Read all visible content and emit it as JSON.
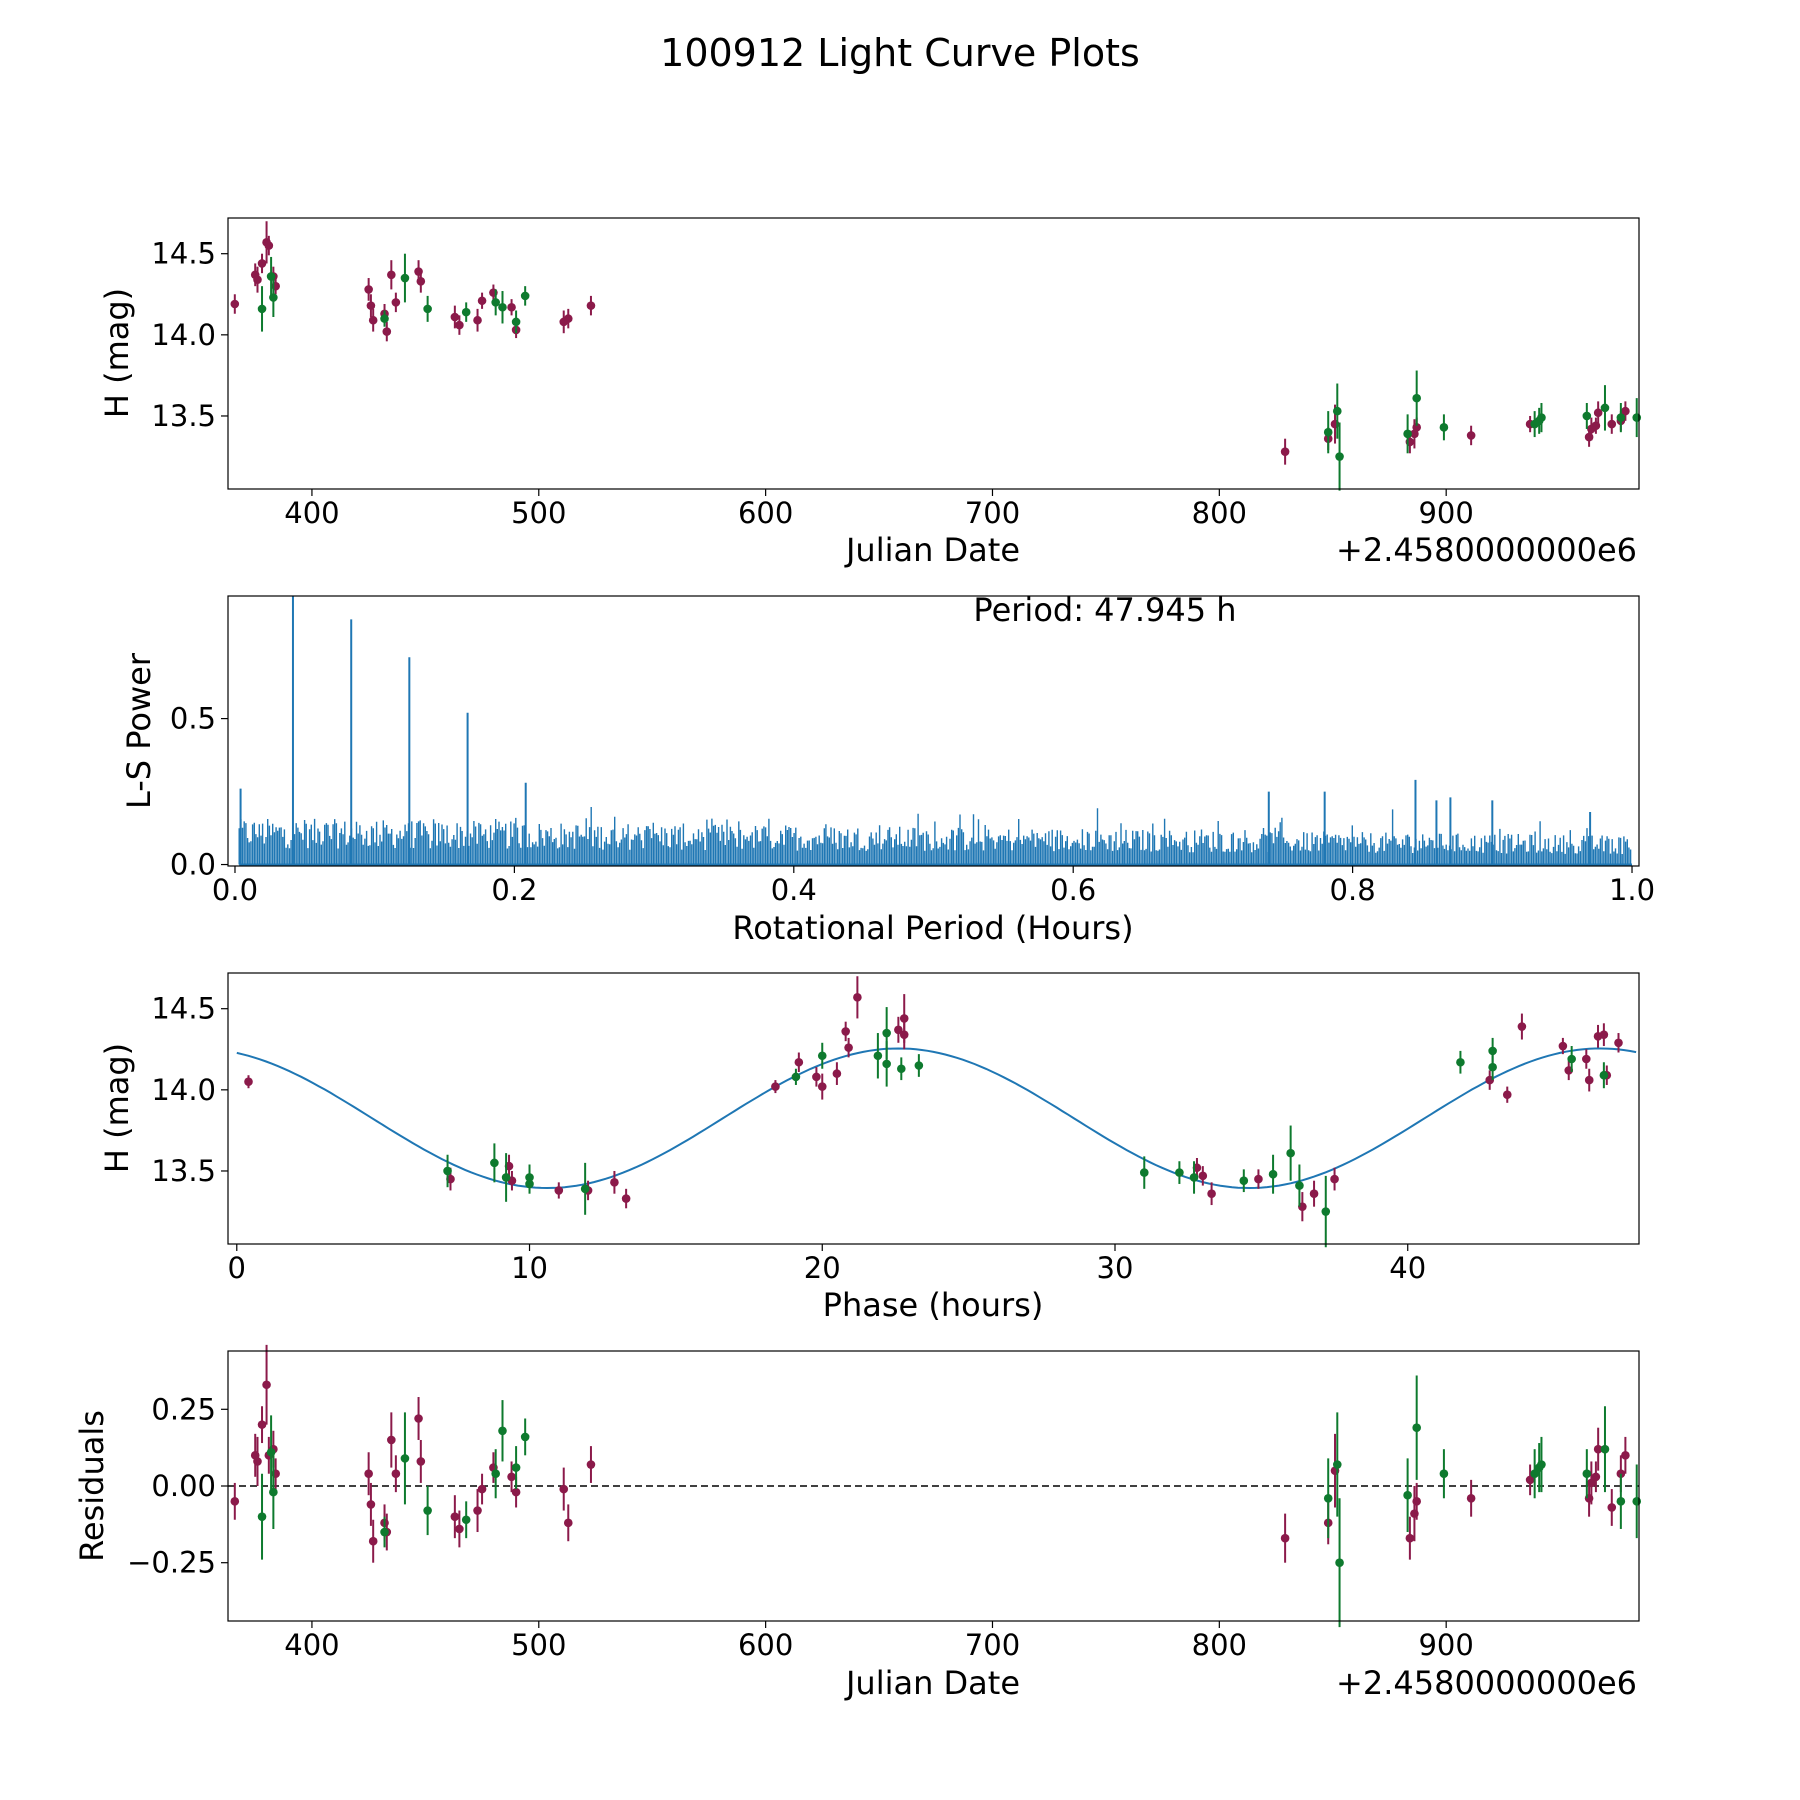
{
  "figure": {
    "title": "100912 Light Curve Plots"
  },
  "colors": {
    "magenta": "#8B1A4A",
    "green": "#0E7A2E",
    "line": "#1F77B4",
    "axis": "#000000"
  },
  "chart_data": [
    {
      "id": "lightcurve",
      "type": "scatter",
      "xlabel": "Julian Date",
      "ylabel": "H (mag)",
      "offset_text": "+2.4580000000e6",
      "xlim": [
        363,
        985
      ],
      "ylim": [
        13.05,
        14.72
      ],
      "xticks": [
        400,
        500,
        600,
        700,
        800,
        900
      ],
      "xtick_labels": [
        "400",
        "500",
        "600",
        "700",
        "800",
        "900"
      ],
      "yticks": [
        13.5,
        14.0,
        14.5
      ],
      "ytick_labels": [
        "13.5",
        "14.0",
        "14.5"
      ],
      "series": [
        {
          "name": "magenta",
          "color": "#8B1A4A",
          "x": [
            366,
            375,
            376,
            378,
            380,
            381,
            383,
            384,
            425,
            426,
            427,
            432,
            433,
            435,
            437,
            447,
            448,
            463,
            465,
            473,
            475,
            480,
            488,
            490,
            511,
            513,
            523,
            829,
            848,
            851,
            884,
            886,
            887,
            911,
            937,
            963,
            964,
            966,
            967,
            973,
            977,
            979
          ],
          "y": [
            14.19,
            14.37,
            14.34,
            14.44,
            14.57,
            14.55,
            14.36,
            14.3,
            14.28,
            14.18,
            14.09,
            14.13,
            14.02,
            14.37,
            14.2,
            14.39,
            14.33,
            14.11,
            14.06,
            14.09,
            14.21,
            14.26,
            14.17,
            14.03,
            14.08,
            14.1,
            14.18,
            13.28,
            13.36,
            13.45,
            13.34,
            13.39,
            13.43,
            13.38,
            13.45,
            13.37,
            13.42,
            13.44,
            13.52,
            13.45,
            13.47,
            13.53
          ],
          "err": [
            0.06,
            0.07,
            0.08,
            0.06,
            0.13,
            0.06,
            0.06,
            0.05,
            0.07,
            0.07,
            0.07,
            0.06,
            0.06,
            0.09,
            0.06,
            0.07,
            0.07,
            0.07,
            0.06,
            0.07,
            0.05,
            0.05,
            0.05,
            0.05,
            0.07,
            0.06,
            0.06,
            0.08,
            0.07,
            0.12,
            0.07,
            0.09,
            0.06,
            0.06,
            0.05,
            0.06,
            0.07,
            0.05,
            0.07,
            0.06,
            0.06,
            0.06
          ]
        },
        {
          "name": "green",
          "color": "#0E7A2E",
          "x": [
            378,
            382,
            383,
            432,
            441,
            451,
            468,
            481,
            484,
            490,
            494,
            848,
            852,
            853,
            883,
            887,
            899,
            939,
            941,
            942,
            962,
            970,
            977,
            984
          ],
          "y": [
            14.16,
            14.36,
            14.23,
            14.1,
            14.35,
            14.16,
            14.14,
            14.2,
            14.17,
            14.08,
            14.24,
            13.4,
            13.53,
            13.25,
            13.39,
            13.61,
            13.43,
            13.45,
            13.47,
            13.49,
            13.5,
            13.55,
            13.49,
            13.49
          ],
          "err": [
            0.14,
            0.12,
            0.12,
            0.05,
            0.15,
            0.08,
            0.06,
            0.08,
            0.1,
            0.07,
            0.06,
            0.13,
            0.17,
            0.21,
            0.12,
            0.17,
            0.08,
            0.08,
            0.08,
            0.09,
            0.08,
            0.14,
            0.09,
            0.12
          ]
        }
      ]
    },
    {
      "id": "periodogram",
      "type": "line",
      "xlabel": "Rotational Period (Hours)",
      "ylabel": "L-S Power",
      "annotation": "Period: 47.945 h",
      "xlim": [
        -0.005,
        1.005
      ],
      "ylim": [
        -0.005,
        0.92
      ],
      "xticks": [
        0.0,
        0.2,
        0.4,
        0.6,
        0.8,
        1.0
      ],
      "xtick_labels": [
        "0.0",
        "0.2",
        "0.4",
        "0.6",
        "0.8",
        "1.0"
      ],
      "yticks": [
        0.0,
        0.5
      ],
      "ytick_labels": [
        "0.0",
        "0.5"
      ],
      "color": "#1F77B4",
      "peaks": [
        {
          "x": 0.0415,
          "power": 0.92
        },
        {
          "x": 0.0832,
          "power": 0.84
        },
        {
          "x": 0.1248,
          "power": 0.71
        },
        {
          "x": 0.1665,
          "power": 0.52
        },
        {
          "x": 0.2081,
          "power": 0.28
        },
        {
          "x": 0.845,
          "power": 0.29
        },
        {
          "x": 0.004,
          "power": 0.26
        },
        {
          "x": 0.78,
          "power": 0.25
        },
        {
          "x": 0.74,
          "power": 0.25
        },
        {
          "x": 0.87,
          "power": 0.23
        },
        {
          "x": 0.86,
          "power": 0.22
        },
        {
          "x": 0.9,
          "power": 0.22
        },
        {
          "x": 0.97,
          "power": 0.18
        }
      ],
      "noise": {
        "start": 0.003,
        "end": 1.0,
        "step": 0.0012,
        "base_low": 0.16,
        "base_high": 0.1,
        "amp_low": 0.05,
        "amp_high": 0.1
      }
    },
    {
      "id": "phased",
      "type": "scatter",
      "xlabel": "Phase (hours)",
      "ylabel": "H (mag)",
      "xlim": [
        -0.3,
        47.9
      ],
      "ylim": [
        13.05,
        14.72
      ],
      "xticks": [
        0,
        10,
        20,
        30,
        40
      ],
      "xtick_labels": [
        "0",
        "10",
        "20",
        "30",
        "40"
      ],
      "yticks": [
        13.5,
        14.0,
        14.5
      ],
      "ytick_labels": [
        "13.5",
        "14.0",
        "14.5"
      ],
      "model": {
        "mean": 13.825,
        "amplitude": 0.43,
        "period": 23.97,
        "peak_phase": 22.6,
        "color": "#1F77B4"
      },
      "series": [
        {
          "name": "magenta",
          "color": "#8B1A4A",
          "x": [
            0.4,
            7.3,
            9.3,
            9.4,
            11.0,
            12.0,
            12.9,
            13.3,
            18.4,
            19.2,
            19.8,
            20.0,
            20.5,
            20.8,
            20.9,
            21.2,
            22.6,
            22.8,
            22.8,
            32.8,
            33.0,
            33.3,
            34.9,
            36.4,
            36.8,
            37.5,
            42.8,
            43.4,
            43.9,
            45.3,
            45.5,
            46.1,
            46.2,
            46.5,
            46.7,
            46.8,
            47.2
          ],
          "y": [
            14.05,
            13.45,
            13.53,
            13.44,
            13.38,
            13.38,
            13.43,
            13.33,
            14.02,
            14.17,
            14.08,
            14.02,
            14.1,
            14.36,
            14.26,
            14.57,
            14.37,
            14.34,
            14.44,
            13.52,
            13.47,
            13.36,
            13.45,
            13.28,
            13.36,
            13.45,
            14.06,
            13.97,
            14.39,
            14.27,
            14.12,
            14.19,
            14.06,
            14.33,
            14.34,
            14.09,
            14.29
          ],
          "err": [
            0.04,
            0.07,
            0.07,
            0.06,
            0.05,
            0.06,
            0.07,
            0.06,
            0.04,
            0.06,
            0.06,
            0.08,
            0.07,
            0.06,
            0.06,
            0.13,
            0.08,
            0.09,
            0.15,
            0.06,
            0.06,
            0.07,
            0.06,
            0.09,
            0.08,
            0.07,
            0.06,
            0.05,
            0.08,
            0.05,
            0.06,
            0.06,
            0.07,
            0.07,
            0.07,
            0.06,
            0.06
          ]
        },
        {
          "name": "green",
          "color": "#0E7A2E",
          "x": [
            7.2,
            8.8,
            9.2,
            10.0,
            10.0,
            11.9,
            19.1,
            20.0,
            21.9,
            22.2,
            22.2,
            22.7,
            23.3,
            31.0,
            32.2,
            32.7,
            34.4,
            35.4,
            36.0,
            36.3,
            37.2,
            41.8,
            42.9,
            42.9,
            45.6,
            46.7
          ],
          "y": [
            13.5,
            13.55,
            13.46,
            13.46,
            13.42,
            13.39,
            14.08,
            14.21,
            14.21,
            14.16,
            14.35,
            14.13,
            14.15,
            13.49,
            13.49,
            13.46,
            13.44,
            13.48,
            13.61,
            13.41,
            13.25,
            14.17,
            14.14,
            14.24,
            14.19,
            14.09
          ],
          "err": [
            0.1,
            0.12,
            0.15,
            0.08,
            0.06,
            0.16,
            0.05,
            0.08,
            0.14,
            0.14,
            0.16,
            0.07,
            0.07,
            0.1,
            0.07,
            0.1,
            0.07,
            0.12,
            0.17,
            0.13,
            0.22,
            0.07,
            0.08,
            0.08,
            0.08,
            0.08
          ]
        }
      ]
    },
    {
      "id": "residuals",
      "type": "scatter",
      "xlabel": "Julian Date",
      "ylabel": "Residuals",
      "offset_text": "+2.4580000000e6",
      "xlim": [
        363,
        985
      ],
      "ylim": [
        -0.44,
        0.44
      ],
      "xticks": [
        400,
        500,
        600,
        700,
        800,
        900
      ],
      "xtick_labels": [
        "400",
        "500",
        "600",
        "700",
        "800",
        "900"
      ],
      "yticks": [
        -0.25,
        0.0,
        0.25
      ],
      "ytick_labels": [
        "−0.25",
        "0.00",
        "0.25"
      ],
      "reference_line": 0.0,
      "series": [
        {
          "name": "magenta",
          "color": "#8B1A4A",
          "x": [
            366,
            375,
            376,
            378,
            380,
            381,
            383,
            384,
            425,
            426,
            427,
            432,
            433,
            435,
            437,
            447,
            448,
            463,
            465,
            473,
            475,
            480,
            488,
            490,
            511,
            513,
            523,
            829,
            848,
            851,
            884,
            886,
            887,
            911,
            937,
            963,
            964,
            966,
            967,
            973,
            977,
            979
          ],
          "y": [
            -0.05,
            0.1,
            0.08,
            0.2,
            0.33,
            0.1,
            0.12,
            0.04,
            0.04,
            -0.06,
            -0.18,
            -0.12,
            -0.15,
            0.15,
            0.04,
            0.22,
            0.08,
            -0.1,
            -0.14,
            -0.08,
            -0.01,
            0.06,
            0.03,
            -0.02,
            -0.01,
            -0.12,
            0.07,
            -0.17,
            -0.12,
            0.05,
            -0.17,
            -0.09,
            -0.05,
            -0.04,
            0.02,
            -0.04,
            0.01,
            0.03,
            0.12,
            -0.07,
            0.04,
            0.1
          ]
        },
        {
          "name": "green",
          "color": "#0E7A2E",
          "x": [
            378,
            382,
            383,
            432,
            441,
            451,
            468,
            481,
            484,
            490,
            494,
            848,
            852,
            853,
            883,
            887,
            899,
            939,
            941,
            942,
            962,
            970,
            977,
            984
          ],
          "y": [
            -0.1,
            0.11,
            -0.02,
            -0.15,
            0.09,
            -0.08,
            -0.11,
            0.04,
            0.18,
            0.06,
            0.16,
            -0.04,
            0.07,
            -0.25,
            -0.03,
            0.19,
            0.04,
            0.04,
            0.06,
            0.07,
            0.04,
            0.12,
            -0.05,
            -0.05
          ]
        }
      ]
    }
  ]
}
